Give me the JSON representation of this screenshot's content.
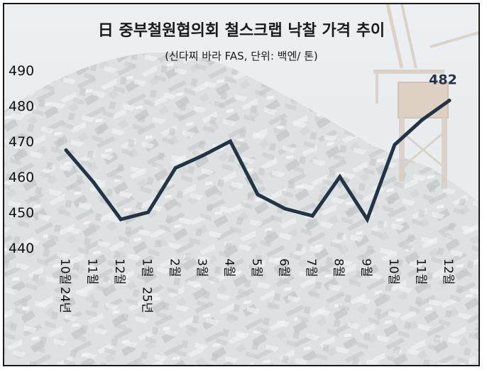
{
  "chart_data": {
    "type": "line",
    "title": "日 중부철원협의회 철스크랩 낙찰 가격 추이",
    "subtitle": "(신다찌 바라 FAS, 단위: 백엔/ 톤)",
    "categories": [
      "24년 10월",
      "11월",
      "12월",
      "25년 1월",
      "2월",
      "3월",
      "4월",
      "5월",
      "6월",
      "7월",
      "8월",
      "9월",
      "10월",
      "11월",
      "12월"
    ],
    "tick_labels": [
      {
        "main": "10월",
        "year": "24년"
      },
      {
        "main": "11월",
        "year": ""
      },
      {
        "main": "12월",
        "year": ""
      },
      {
        "main": "1월",
        "year": "25년"
      },
      {
        "main": "2월",
        "year": ""
      },
      {
        "main": "3월",
        "year": ""
      },
      {
        "main": "4월",
        "year": ""
      },
      {
        "main": "5월",
        "year": ""
      },
      {
        "main": "6월",
        "year": ""
      },
      {
        "main": "7월",
        "year": ""
      },
      {
        "main": "8월",
        "year": ""
      },
      {
        "main": "9월",
        "year": ""
      },
      {
        "main": "10월",
        "year": ""
      },
      {
        "main": "11월",
        "year": ""
      },
      {
        "main": "12월",
        "year": ""
      }
    ],
    "series": [
      {
        "values": [
          467.5,
          458.5,
          448,
          450,
          462.5,
          466,
          470,
          455,
          451,
          449,
          460,
          448,
          469,
          476,
          481.5
        ]
      }
    ],
    "last_value_label": "482",
    "yticks": [
      "490",
      "480",
      "470",
      "460",
      "450",
      "440"
    ],
    "ylim": [
      440,
      490
    ],
    "grid": false,
    "line_color": "#243447",
    "background": "photo of scrap metal pile with crane (faded)"
  }
}
